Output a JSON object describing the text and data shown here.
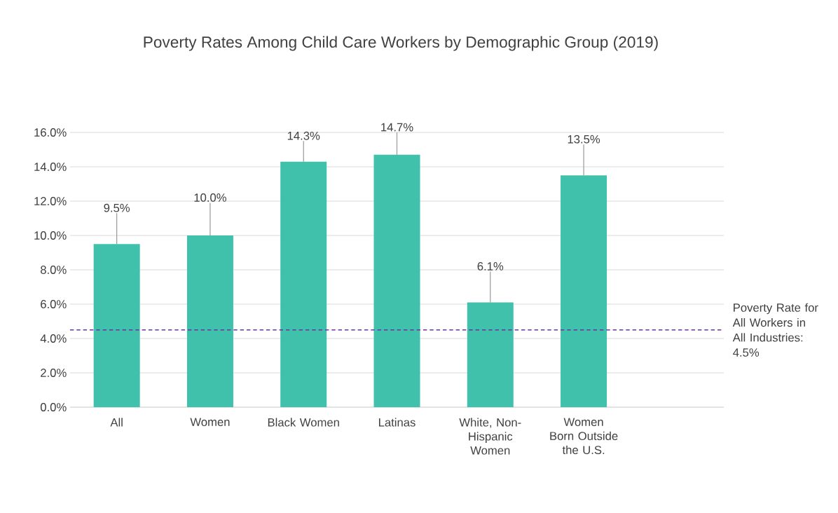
{
  "chart_data": {
    "type": "bar",
    "title": "Poverty Rates Among Child Care Workers by Demographic Group (2019)",
    "categories": [
      "All",
      "Women",
      "Black Women",
      "Latinas",
      "White, Non-Hispanic Women",
      "Women Born Outside the U.S."
    ],
    "values": [
      9.5,
      10.0,
      14.3,
      14.7,
      6.1,
      13.5
    ],
    "errors": [
      [
        9.5,
        11.3
      ],
      [
        10.0,
        11.9
      ],
      [
        14.3,
        15.5
      ],
      [
        14.7,
        16.0
      ],
      [
        6.1,
        7.9
      ],
      [
        13.5,
        15.3
      ]
    ],
    "value_labels": [
      "9.5%",
      "10.0%",
      "14.3%",
      "14.7%",
      "6.1%",
      "13.5%"
    ],
    "color": "#40c1ab",
    "ylim": [
      0,
      16
    ],
    "yticks": [
      {
        "value": 0,
        "label": "0.0%"
      },
      {
        "value": 2,
        "label": "2.0%"
      },
      {
        "value": 4,
        "label": "4.0%"
      },
      {
        "value": 6,
        "label": "6.0%"
      },
      {
        "value": 8,
        "label": "8.0%"
      },
      {
        "value": 10,
        "label": "10.0%"
      },
      {
        "value": 12,
        "label": "12.0%"
      },
      {
        "value": 14,
        "label": "14.0%"
      },
      {
        "value": 16,
        "label": "16.0%"
      }
    ],
    "grid": "y",
    "ref_lines": [
      {
        "axis": "y",
        "value": 4.5,
        "label": "Poverty Rate for All Workers in All Industries: 4.5%",
        "color": "#7030a0",
        "line_style": "dashed"
      }
    ]
  }
}
